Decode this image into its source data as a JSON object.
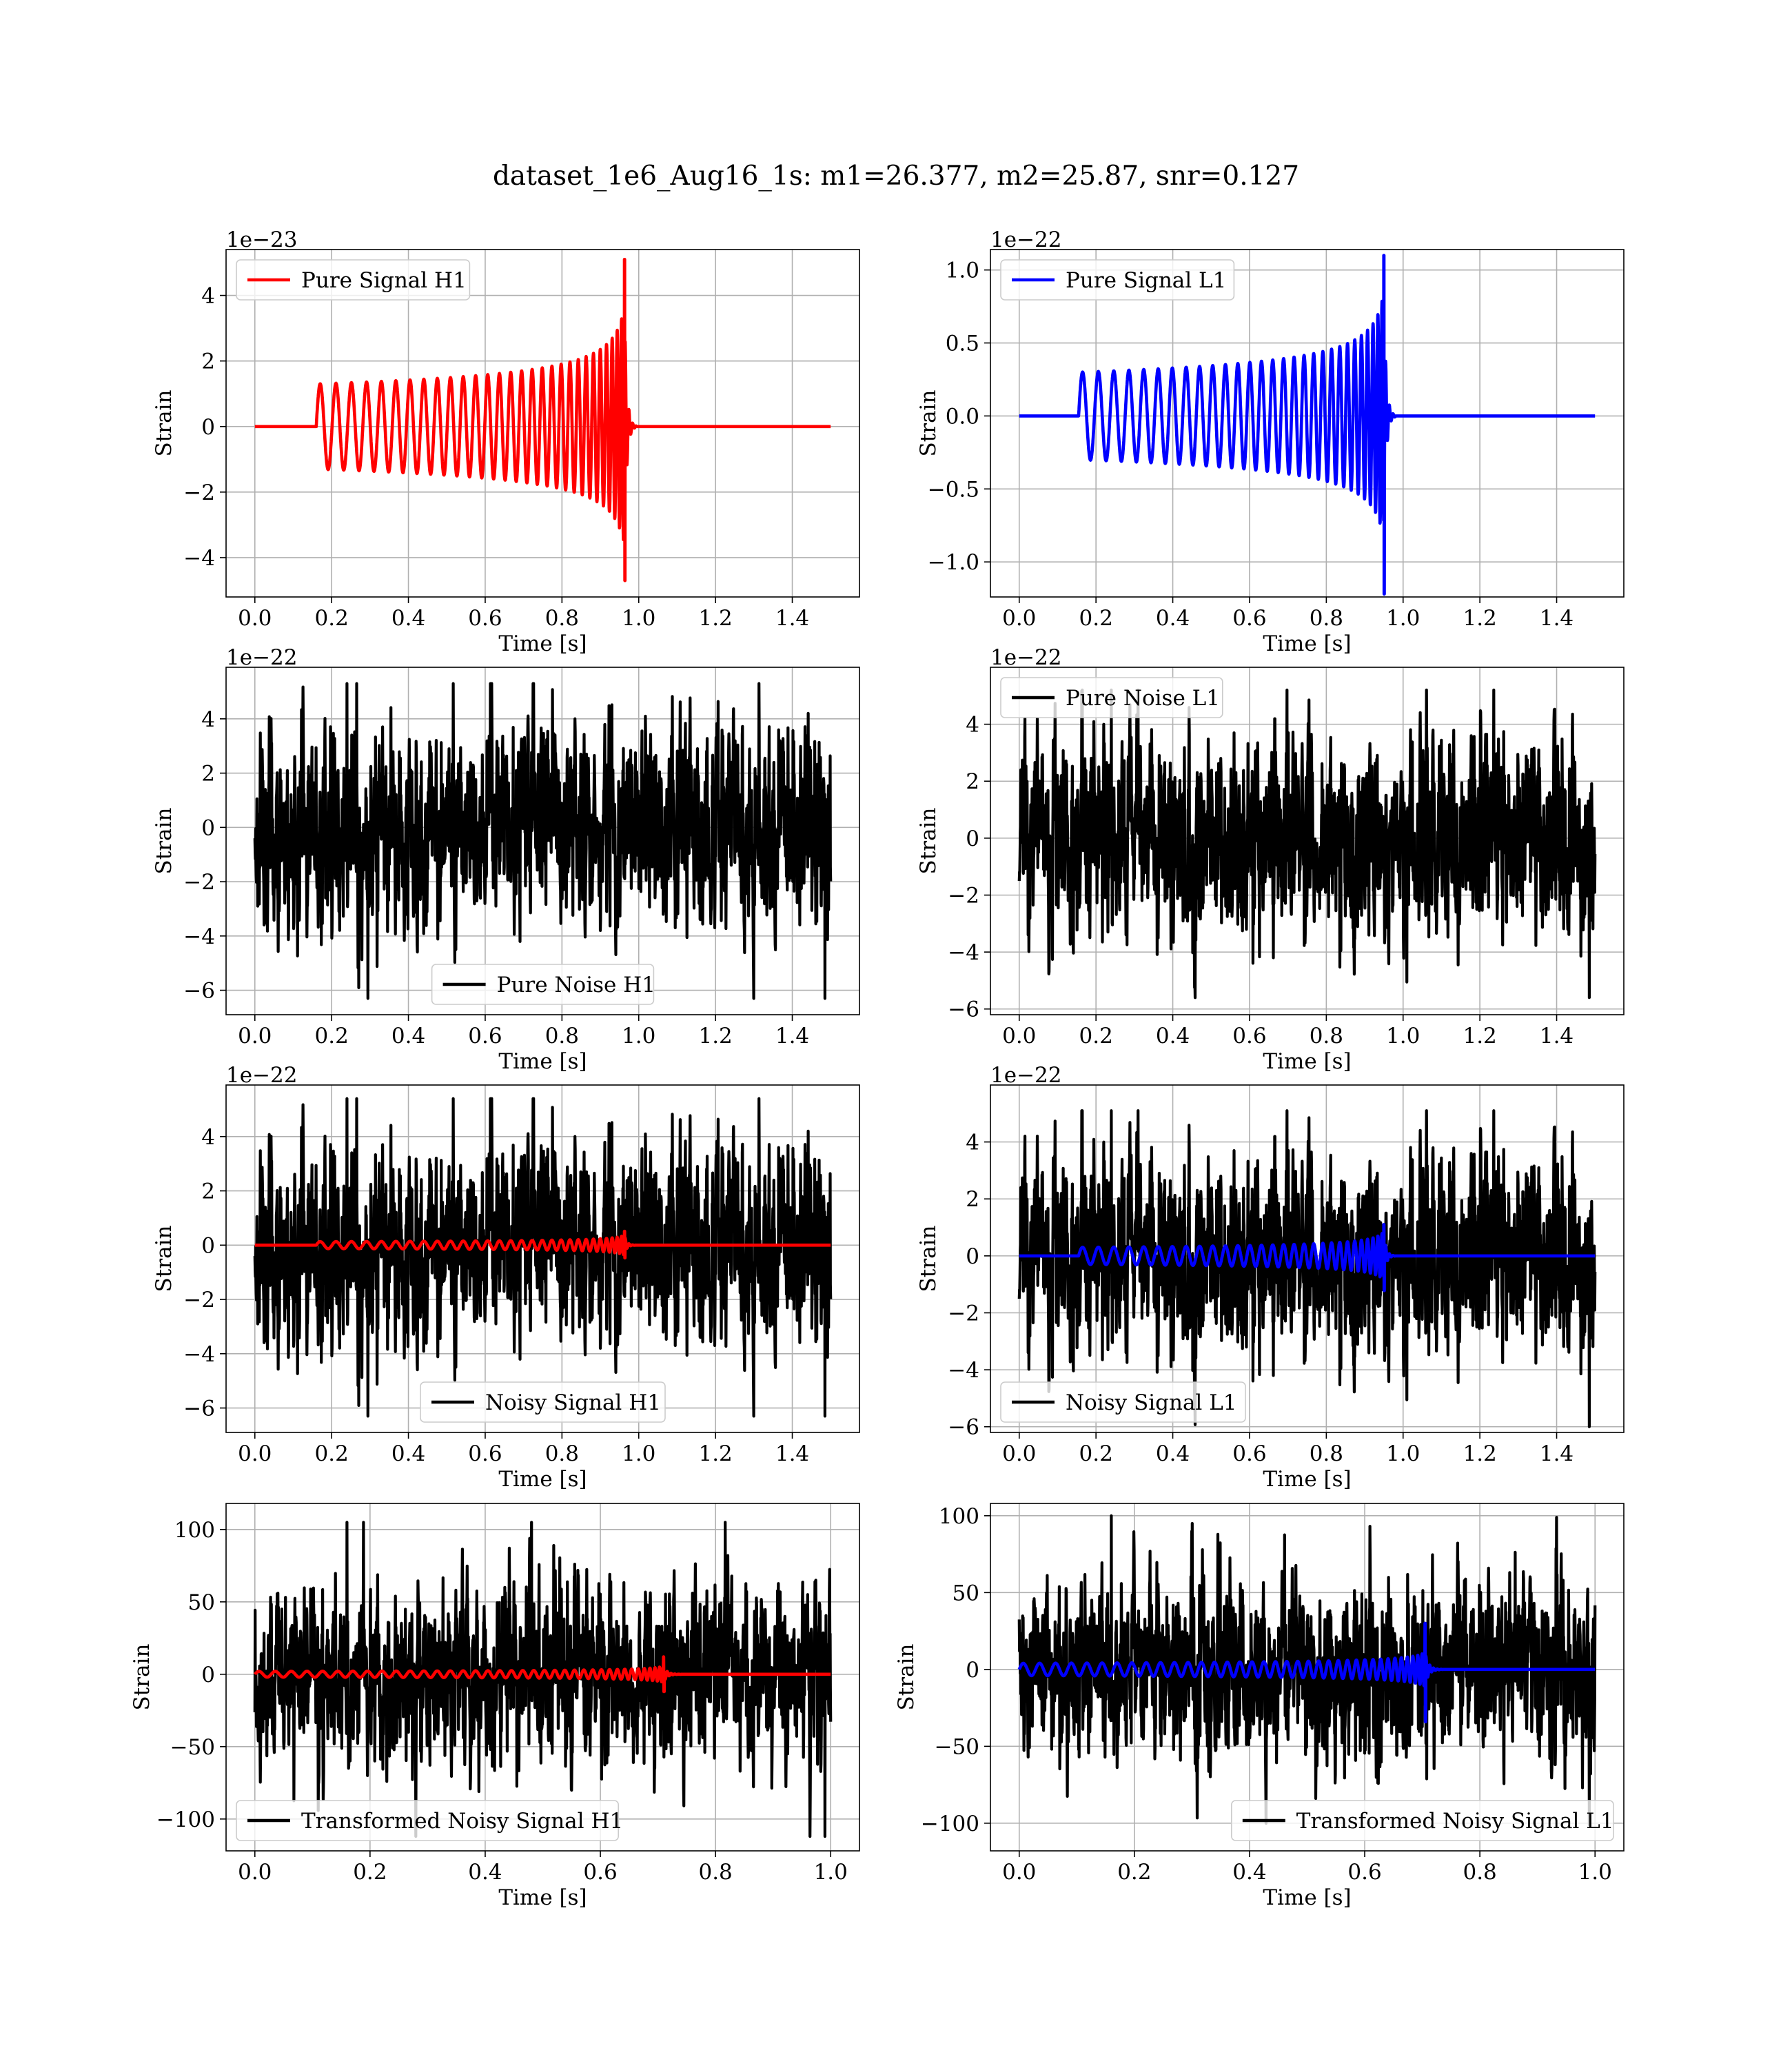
{
  "figure": {
    "title": "dataset_1e6_Aug16_1s: m1=26.377, m2=25.87, snr=0.127",
    "background": "#ffffff"
  },
  "chart_data": [
    {
      "id": "h1_signal",
      "type": "line",
      "offset_text": "1e−23",
      "xlabel": "Time [s]",
      "ylabel": "Strain",
      "xlim": [
        -0.075,
        1.575
      ],
      "ylim": [
        -5.2,
        5.4
      ],
      "xticks": [
        0.0,
        0.2,
        0.4,
        0.6,
        0.8,
        1.0,
        1.2,
        1.4
      ],
      "xtick_labels": [
        "0.0",
        "0.2",
        "0.4",
        "0.6",
        "0.8",
        "1.0",
        "1.2",
        "1.4"
      ],
      "yticks": [
        -4,
        -2,
        0,
        2,
        4
      ],
      "ytick_labels": [
        "−4",
        "−2",
        "0",
        "2",
        "4"
      ],
      "grid": true,
      "legend_position": "upper left",
      "series": [
        {
          "name": "Pure Signal H1",
          "color": "#ff0000",
          "kind": "chirp",
          "duration": 1.5,
          "t_start": 0.16,
          "t_merge": 0.963,
          "f_start": 24,
          "f_merge": 140,
          "amp_start": 1.3,
          "amp_peak": 5.1,
          "amp_min_peak": -4.7,
          "x": [
            0.0,
            0.16,
            0.6,
            0.8,
            0.9,
            0.963,
            0.98,
            1.5
          ],
          "y_envelope": [
            0.0,
            1.3,
            1.55,
            1.9,
            2.6,
            5.1,
            0.0,
            0.0
          ]
        }
      ]
    },
    {
      "id": "l1_signal",
      "type": "line",
      "offset_text": "1e−22",
      "xlabel": "Time [s]",
      "ylabel": "Strain",
      "xlim": [
        -0.075,
        1.575
      ],
      "ylim": [
        -1.24,
        1.14
      ],
      "xticks": [
        0.0,
        0.2,
        0.4,
        0.6,
        0.8,
        1.0,
        1.2,
        1.4
      ],
      "xtick_labels": [
        "0.0",
        "0.2",
        "0.4",
        "0.6",
        "0.8",
        "1.0",
        "1.2",
        "1.4"
      ],
      "yticks": [
        -1.0,
        -0.5,
        0.0,
        0.5,
        1.0
      ],
      "ytick_labels": [
        "−1.0",
        "−0.5",
        "0.0",
        "0.5",
        "1.0"
      ],
      "grid": true,
      "legend_position": "upper left",
      "series": [
        {
          "name": "Pure Signal L1",
          "color": "#0000ff",
          "kind": "chirp",
          "duration": 1.5,
          "t_start": 0.155,
          "t_merge": 0.95,
          "f_start": 24,
          "f_merge": 140,
          "amp_start": 0.3,
          "amp_peak": 1.1,
          "amp_min_peak": -1.22,
          "x": [
            0.0,
            0.155,
            0.6,
            0.8,
            0.9,
            0.95,
            0.97,
            1.5
          ],
          "y_envelope": [
            0.0,
            0.3,
            0.36,
            0.44,
            0.6,
            1.1,
            0.0,
            0.0
          ]
        }
      ]
    },
    {
      "id": "h1_noise",
      "type": "line",
      "offset_text": "1e−22",
      "xlabel": "Time [s]",
      "ylabel": "Strain",
      "xlim": [
        -0.075,
        1.575
      ],
      "ylim": [
        -6.9,
        5.9
      ],
      "xticks": [
        0.0,
        0.2,
        0.4,
        0.6,
        0.8,
        1.0,
        1.2,
        1.4
      ],
      "xtick_labels": [
        "0.0",
        "0.2",
        "0.4",
        "0.6",
        "0.8",
        "1.0",
        "1.2",
        "1.4"
      ],
      "yticks": [
        -6,
        -4,
        -2,
        0,
        2,
        4
      ],
      "ytick_labels": [
        "−6",
        "−4",
        "−2",
        "0",
        "2",
        "4"
      ],
      "grid": true,
      "legend_position": "lower center",
      "series": [
        {
          "name": "Pure Noise H1",
          "color": "#000000",
          "kind": "noise",
          "duration": 1.5,
          "std": 1.7,
          "max": 5.3,
          "min": -6.3,
          "seed": 11
        }
      ]
    },
    {
      "id": "l1_noise",
      "type": "line",
      "offset_text": "1e−22",
      "xlabel": "Time [s]",
      "ylabel": "Strain",
      "xlim": [
        -0.075,
        1.575
      ],
      "ylim": [
        -6.2,
        6.0
      ],
      "xticks": [
        0.0,
        0.2,
        0.4,
        0.6,
        0.8,
        1.0,
        1.2,
        1.4
      ],
      "xtick_labels": [
        "0.0",
        "0.2",
        "0.4",
        "0.6",
        "0.8",
        "1.0",
        "1.2",
        "1.4"
      ],
      "yticks": [
        -6,
        -4,
        -2,
        0,
        2,
        4
      ],
      "ytick_labels": [
        "−6",
        "−4",
        "−2",
        "0",
        "2",
        "4"
      ],
      "grid": true,
      "legend_position": "upper left",
      "series": [
        {
          "name": "Pure Noise L1",
          "color": "#000000",
          "kind": "noise",
          "duration": 1.5,
          "std": 1.6,
          "max": 5.2,
          "min": -5.6,
          "seed": 23
        }
      ]
    },
    {
      "id": "h1_noisy",
      "type": "line",
      "offset_text": "1e−22",
      "xlabel": "Time [s]",
      "ylabel": "Strain",
      "xlim": [
        -0.075,
        1.575
      ],
      "ylim": [
        -6.9,
        5.9
      ],
      "xticks": [
        0.0,
        0.2,
        0.4,
        0.6,
        0.8,
        1.0,
        1.2,
        1.4
      ],
      "xtick_labels": [
        "0.0",
        "0.2",
        "0.4",
        "0.6",
        "0.8",
        "1.0",
        "1.2",
        "1.4"
      ],
      "yticks": [
        -6,
        -4,
        -2,
        0,
        2,
        4
      ],
      "ytick_labels": [
        "−6",
        "−4",
        "−2",
        "0",
        "2",
        "4"
      ],
      "grid": true,
      "legend_position": "lower center",
      "series": [
        {
          "name": "Noisy Signal H1",
          "color": "#000000",
          "kind": "noise",
          "duration": 1.5,
          "std": 1.7,
          "max": 5.4,
          "min": -6.3,
          "seed": 11
        },
        {
          "color": "#ff0000",
          "kind": "chirp",
          "duration": 1.5,
          "t_start": 0.16,
          "t_merge": 0.963,
          "f_start": 24,
          "f_merge": 140,
          "amp_start": 0.13,
          "amp_peak": 0.51,
          "amp_min_peak": -0.47
        }
      ]
    },
    {
      "id": "l1_noisy",
      "type": "line",
      "offset_text": "1e−22",
      "xlabel": "Time [s]",
      "ylabel": "Strain",
      "xlim": [
        -0.075,
        1.575
      ],
      "ylim": [
        -6.2,
        6.0
      ],
      "xticks": [
        0.0,
        0.2,
        0.4,
        0.6,
        0.8,
        1.0,
        1.2,
        1.4
      ],
      "xtick_labels": [
        "0.0",
        "0.2",
        "0.4",
        "0.6",
        "0.8",
        "1.0",
        "1.2",
        "1.4"
      ],
      "yticks": [
        -6,
        -4,
        -2,
        0,
        2,
        4
      ],
      "ytick_labels": [
        "−6",
        "−4",
        "−2",
        "0",
        "2",
        "4"
      ],
      "grid": true,
      "legend_position": "lower left",
      "series": [
        {
          "name": "Noisy Signal L1",
          "color": "#000000",
          "kind": "noise",
          "duration": 1.5,
          "std": 1.6,
          "max": 5.1,
          "min": -6.0,
          "seed": 23
        },
        {
          "color": "#0000ff",
          "kind": "chirp",
          "duration": 1.5,
          "t_start": 0.155,
          "t_merge": 0.95,
          "f_start": 24,
          "f_merge": 140,
          "amp_start": 0.3,
          "amp_peak": 1.1,
          "amp_min_peak": -1.22
        }
      ]
    },
    {
      "id": "h1_transformed",
      "type": "line",
      "offset_text": "",
      "xlabel": "Time [s]",
      "ylabel": "Strain",
      "xlim": [
        -0.05,
        1.05
      ],
      "ylim": [
        -122,
        118
      ],
      "xticks": [
        0.0,
        0.2,
        0.4,
        0.6,
        0.8,
        1.0
      ],
      "xtick_labels": [
        "0.0",
        "0.2",
        "0.4",
        "0.6",
        "0.8",
        "1.0"
      ],
      "yticks": [
        -100,
        -50,
        0,
        50,
        100
      ],
      "ytick_labels": [
        "−100",
        "−50",
        "0",
        "50",
        "100"
      ],
      "grid": true,
      "legend_position": "lower left",
      "series": [
        {
          "name": "Transformed Noisy Signal H1",
          "color": "#000000",
          "kind": "noise",
          "duration": 1.0,
          "std": 28,
          "max": 105,
          "min": -112,
          "seed": 37
        },
        {
          "color": "#ff0000",
          "kind": "chirp",
          "duration": 1.0,
          "t_start": 0.0,
          "t_merge": 0.71,
          "f_start": 35,
          "f_merge": 190,
          "amp_start": 2,
          "amp_peak": 12,
          "amp_min_peak": -12
        }
      ]
    },
    {
      "id": "l1_transformed",
      "type": "line",
      "offset_text": "",
      "xlabel": "Time [s]",
      "ylabel": "Strain",
      "xlim": [
        -0.05,
        1.05
      ],
      "ylim": [
        -118,
        108
      ],
      "xticks": [
        0.0,
        0.2,
        0.4,
        0.6,
        0.8,
        1.0
      ],
      "xtick_labels": [
        "0.0",
        "0.2",
        "0.4",
        "0.6",
        "0.8",
        "1.0"
      ],
      "yticks": [
        -100,
        -50,
        0,
        50,
        100
      ],
      "ytick_labels": [
        "−100",
        "−50",
        "0",
        "50",
        "100"
      ],
      "grid": true,
      "legend_position": "lower right",
      "series": [
        {
          "name": "Transformed Noisy Signal L1",
          "color": "#000000",
          "kind": "noise",
          "duration": 1.0,
          "std": 27,
          "max": 100,
          "min": -101,
          "seed": 53
        },
        {
          "color": "#0000ff",
          "kind": "chirp",
          "duration": 1.0,
          "t_start": 0.0,
          "t_merge": 0.705,
          "f_start": 35,
          "f_merge": 190,
          "amp_start": 4,
          "amp_peak": 30,
          "amp_min_peak": -34
        }
      ]
    }
  ]
}
